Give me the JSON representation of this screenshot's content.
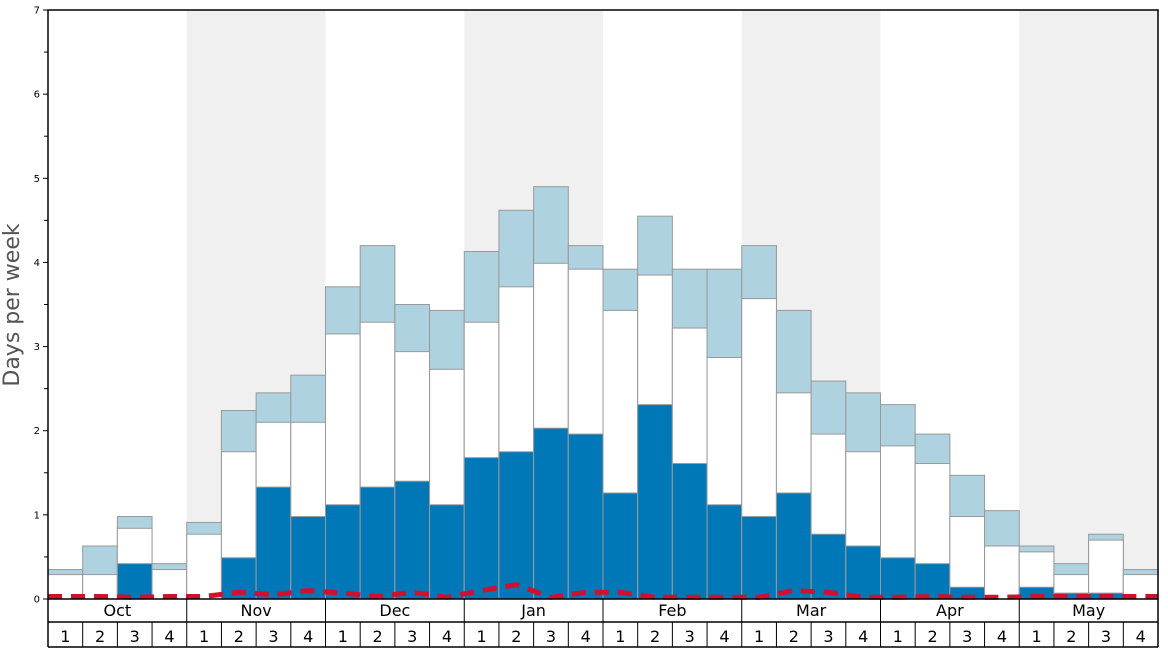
{
  "chart_data": {
    "type": "bar",
    "ylabel": "Days per week",
    "ylim": [
      0,
      7
    ],
    "yticks": [
      "0",
      "1",
      "2",
      "3",
      "4",
      "5",
      "6",
      "7"
    ],
    "months": [
      "Oct",
      "Nov",
      "Dec",
      "Jan",
      "Feb",
      "Mar",
      "Apr",
      "May"
    ],
    "weeks": [
      "1",
      "2",
      "3",
      "4"
    ],
    "colors": {
      "dark": "#0077b6",
      "white": "#ffffff",
      "light": "#aed2df",
      "dashed": "#d0102c",
      "shade": "#f0f0f0",
      "border": "#999999"
    },
    "series": [
      {
        "values": [
          0.02,
          0.02,
          0.42,
          0.02,
          0.02,
          0.49,
          1.33,
          0.98,
          1.12,
          1.33,
          1.4,
          1.12,
          1.68,
          1.75,
          2.03,
          1.96,
          1.26,
          2.31,
          1.61,
          1.12,
          0.98,
          1.26,
          0.77,
          0.63,
          0.49,
          0.42,
          0.14,
          0.02,
          0.14,
          0.07,
          0.07,
          0.02
        ]
      },
      {
        "values": [
          0.29,
          0.29,
          0.84,
          0.35,
          0.77,
          1.75,
          2.1,
          2.1,
          3.15,
          3.29,
          2.94,
          2.73,
          3.29,
          3.71,
          3.99,
          3.92,
          3.43,
          3.85,
          3.22,
          2.87,
          3.57,
          2.45,
          1.96,
          1.75,
          1.82,
          1.61,
          0.98,
          0.63,
          0.56,
          0.29,
          0.7,
          0.29
        ]
      },
      {
        "values": [
          0.35,
          0.63,
          0.98,
          0.42,
          0.91,
          2.24,
          2.45,
          2.66,
          3.71,
          4.2,
          3.5,
          3.43,
          4.13,
          4.62,
          4.9,
          4.2,
          3.92,
          4.55,
          3.92,
          3.92,
          4.2,
          3.43,
          2.59,
          2.45,
          2.31,
          1.96,
          1.47,
          1.05,
          0.63,
          0.42,
          0.77,
          0.35
        ]
      },
      {
        "values": [
          0.03,
          0.03,
          0.02,
          0.03,
          0.03,
          0.08,
          0.05,
          0.1,
          0.07,
          0.03,
          0.08,
          0.02,
          0.1,
          0.17,
          0.02,
          0.08,
          0.08,
          0.02,
          0.02,
          0.02,
          0.02,
          0.1,
          0.08,
          0.02,
          0.02,
          0.03,
          0.02,
          0.02,
          0.03,
          0.03,
          0.03,
          0.03
        ]
      }
    ]
  }
}
